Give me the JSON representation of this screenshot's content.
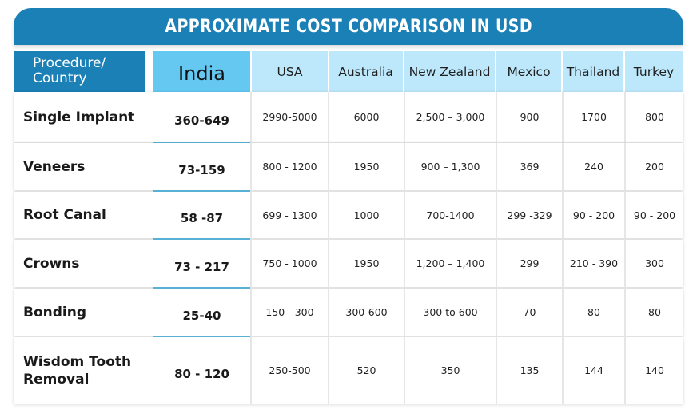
{
  "chart_data": {
    "type": "table",
    "title": "APPROXIMATE COST COMPARISON IN USD",
    "corner_header": [
      "Procedure/",
      "Country"
    ],
    "columns": [
      "India",
      "USA",
      "Australia",
      "New Zealand",
      "Mexico",
      "Thailand",
      "Turkey"
    ],
    "rows": [
      {
        "procedure": [
          "Single Implant"
        ],
        "values": [
          "360-649",
          "2990-5000",
          "6000",
          "2,500 – 3,000",
          "900",
          "1700",
          "800"
        ]
      },
      {
        "procedure": [
          "Veneers"
        ],
        "values": [
          "73-159",
          "800 - 1200",
          "1950",
          "900 – 1,300",
          "369",
          "240",
          "200"
        ]
      },
      {
        "procedure": [
          "Root Canal"
        ],
        "values": [
          "58 -87",
          "699 - 1300",
          "1000",
          "700-1400",
          "299 -329",
          "90 - 200",
          "90 - 200"
        ]
      },
      {
        "procedure": [
          "Crowns"
        ],
        "values": [
          "73 - 217",
          "750 - 1000",
          "1950",
          "1,200 – 1,400",
          "299",
          "210 - 390",
          "300"
        ]
      },
      {
        "procedure": [
          "Bonding"
        ],
        "values": [
          "25-40",
          "150 - 300",
          "300-600",
          "300 to 600",
          "70",
          "80",
          "80"
        ]
      },
      {
        "procedure": [
          "Wisdom Tooth",
          "Removal"
        ],
        "values": [
          "80 - 120",
          "250-500",
          "520",
          "350",
          "135",
          "144",
          "140"
        ]
      }
    ],
    "colors": {
      "title_bar": "#1a80b6",
      "header_cells": "#bde7fb",
      "india_column": "#65c8f1",
      "row_background": "#ffffff"
    }
  }
}
